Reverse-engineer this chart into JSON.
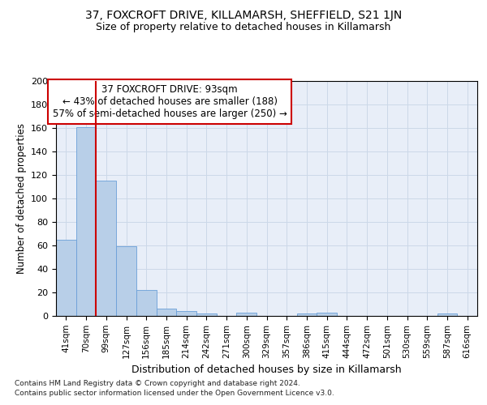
{
  "title1": "37, FOXCROFT DRIVE, KILLAMARSH, SHEFFIELD, S21 1JN",
  "title2": "Size of property relative to detached houses in Killamarsh",
  "xlabel": "Distribution of detached houses by size in Killamarsh",
  "ylabel": "Number of detached properties",
  "footnote1": "Contains HM Land Registry data © Crown copyright and database right 2024.",
  "footnote2": "Contains public sector information licensed under the Open Government Licence v3.0.",
  "categories": [
    "41sqm",
    "70sqm",
    "99sqm",
    "127sqm",
    "156sqm",
    "185sqm",
    "214sqm",
    "242sqm",
    "271sqm",
    "300sqm",
    "329sqm",
    "357sqm",
    "386sqm",
    "415sqm",
    "444sqm",
    "472sqm",
    "501sqm",
    "530sqm",
    "559sqm",
    "587sqm",
    "616sqm"
  ],
  "values": [
    65,
    161,
    115,
    59,
    22,
    6,
    4,
    2,
    0,
    3,
    0,
    0,
    2,
    3,
    0,
    0,
    0,
    0,
    0,
    2,
    0
  ],
  "bar_color": "#b8cfe8",
  "bar_edge_color": "#6a9fd8",
  "grid_color": "#ccd8e8",
  "background_color": "#e8eef8",
  "vline_color": "#cc0000",
  "vline_index": 2,
  "annotation_title": "37 FOXCROFT DRIVE: 93sqm",
  "annotation_line1": "← 43% of detached houses are smaller (188)",
  "annotation_line2": "57% of semi-detached houses are larger (250) →",
  "annotation_box_edge": "#cc0000",
  "ylim": [
    0,
    200
  ],
  "yticks": [
    0,
    20,
    40,
    60,
    80,
    100,
    120,
    140,
    160,
    180,
    200
  ]
}
